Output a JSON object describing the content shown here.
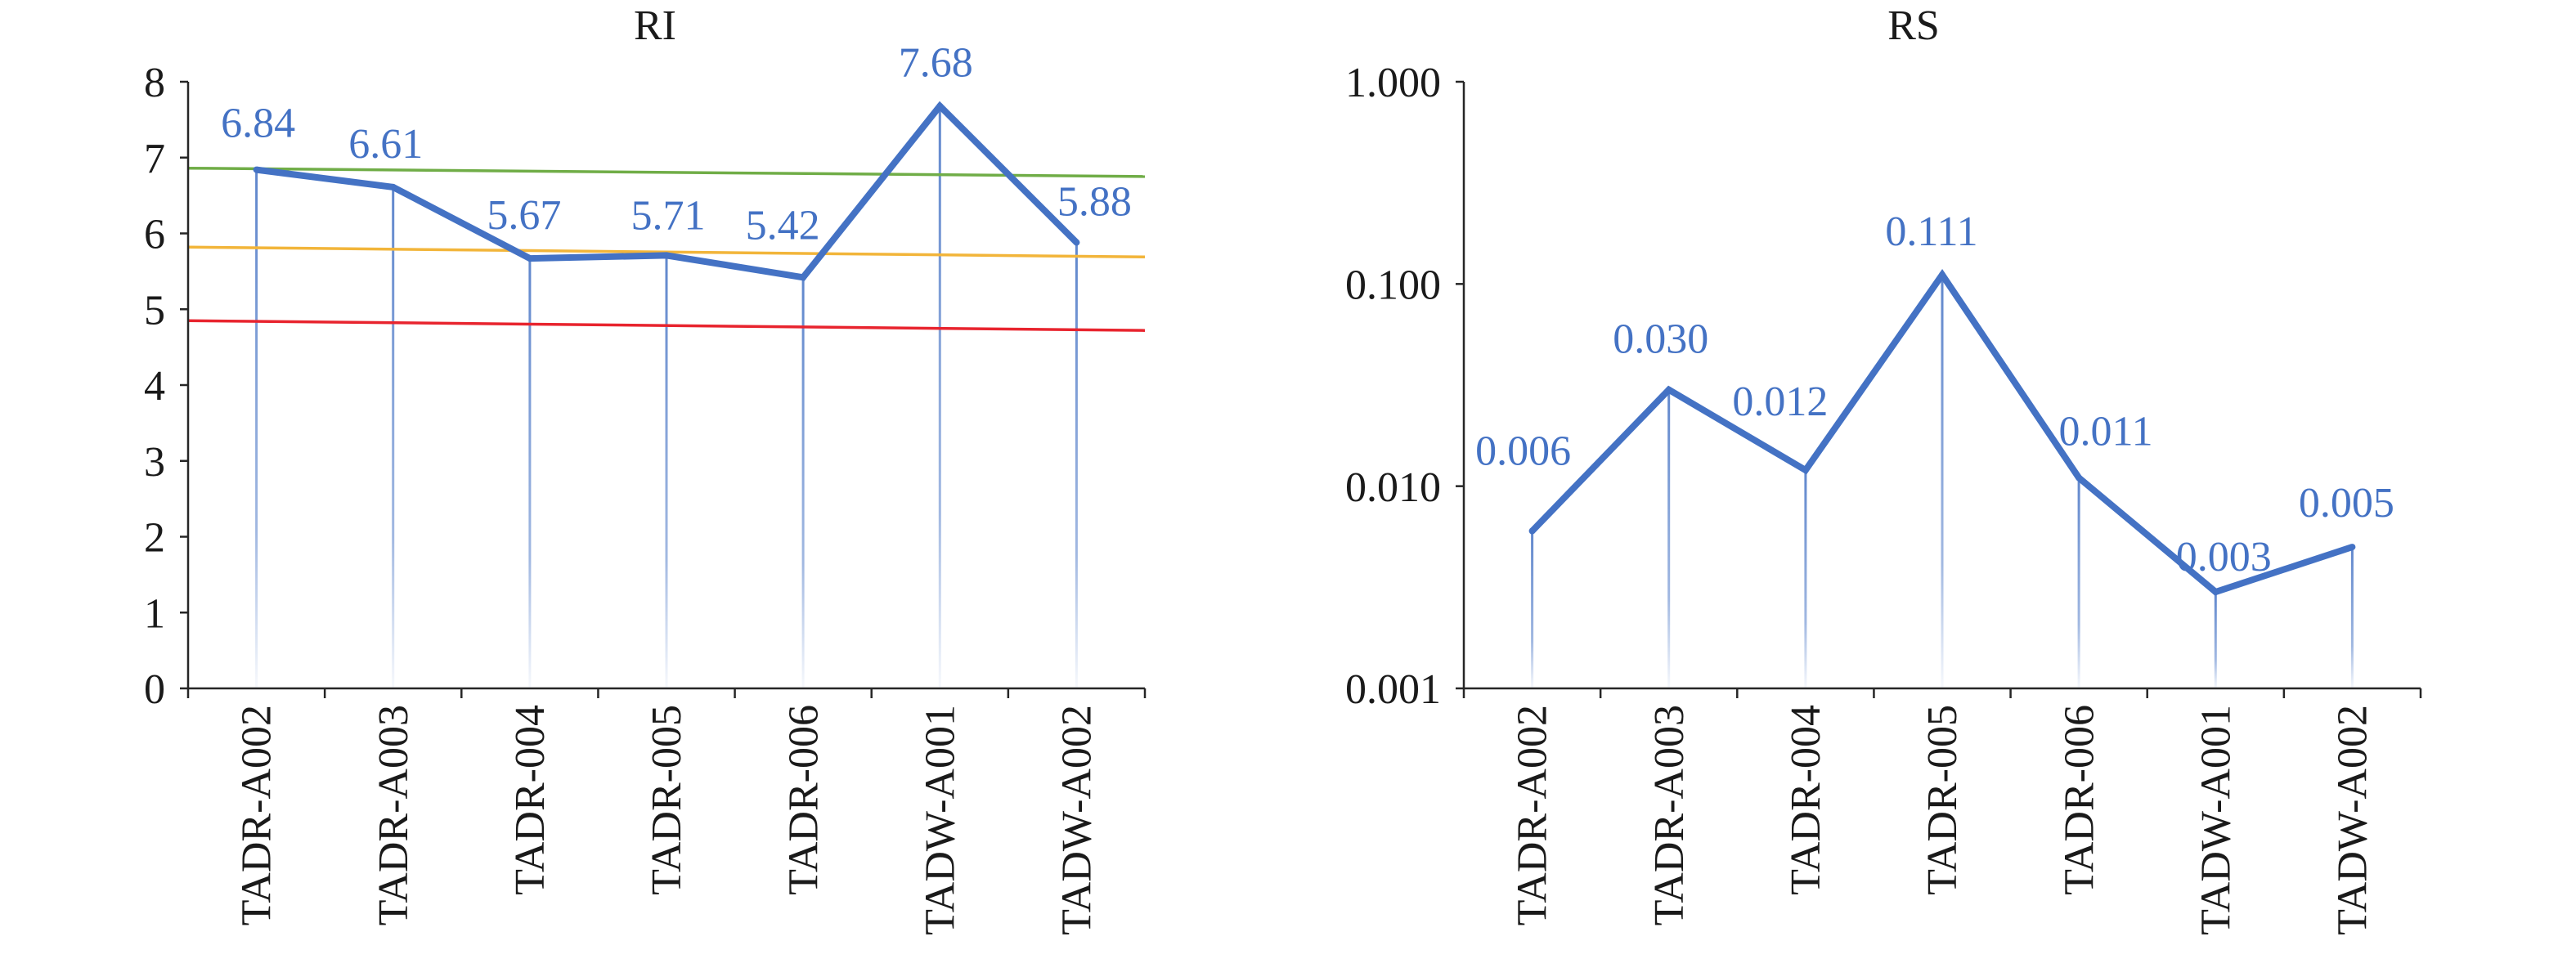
{
  "chart_data": [
    {
      "type": "line",
      "title": "RI",
      "categories": [
        "TADR-A002",
        "TADR-A003",
        "TADR-004",
        "TADR-005",
        "TADR-006",
        "TADW-A001",
        "TADW-A002"
      ],
      "series": [
        {
          "values": [
            6.84,
            6.61,
            5.67,
            5.71,
            5.42,
            7.68,
            5.88
          ],
          "labels": [
            "6.84",
            "6.61",
            "5.67",
            "5.71",
            "5.42",
            "7.68",
            "5.88"
          ],
          "color": "#4472C4"
        }
      ],
      "y_scale": "linear",
      "ylim": [
        0,
        8
      ],
      "yticks": [
        0,
        1,
        2,
        3,
        4,
        5,
        6,
        7,
        8
      ],
      "ytick_labels": [
        "0",
        "1",
        "2",
        "3",
        "4",
        "5",
        "6",
        "7",
        "8"
      ],
      "reference_lines": [
        {
          "color": "#70AD47",
          "y_start": 6.86,
          "y_end": 6.75
        },
        {
          "color": "#F2B53A",
          "y_start": 5.82,
          "y_end": 5.69
        },
        {
          "color": "#E8242E",
          "y_start": 4.85,
          "y_end": 4.72
        }
      ],
      "drop_lines": true,
      "grid": false,
      "legend": "none"
    },
    {
      "type": "line",
      "title": "RS",
      "categories": [
        "TADR-A002",
        "TADR-A003",
        "TADR-004",
        "TADR-005",
        "TADR-006",
        "TADW-A001",
        "TADW-A002"
      ],
      "series": [
        {
          "values": [
            0.006,
            0.03,
            0.012,
            0.111,
            0.011,
            0.003,
            0.005
          ],
          "labels": [
            "0.006",
            "0.030",
            "0.012",
            "0.111",
            "0.011",
            "0.003",
            "0.005"
          ],
          "color": "#4472C4"
        }
      ],
      "y_scale": "log",
      "ylim": [
        0.001,
        1.0
      ],
      "yticks": [
        0.001,
        0.01,
        0.1,
        1.0
      ],
      "ytick_labels": [
        "0.001",
        "0.010",
        "0.100",
        "1.000"
      ],
      "drop_lines": true,
      "grid": false,
      "legend": "none"
    }
  ]
}
